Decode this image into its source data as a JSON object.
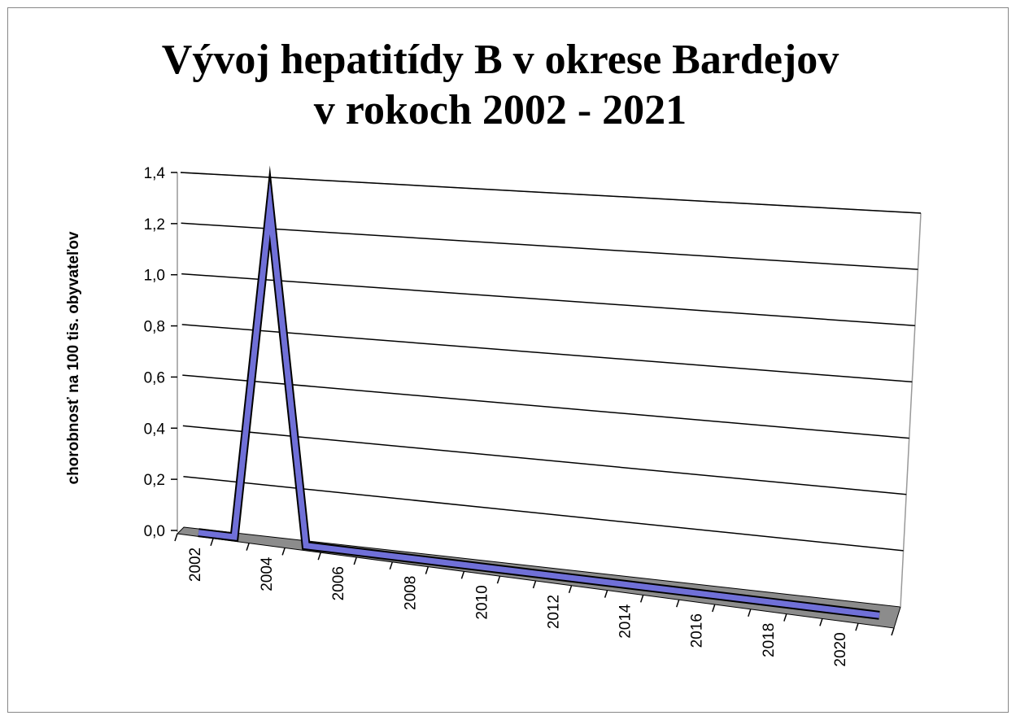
{
  "chart_data": {
    "type": "line",
    "title": [
      "Vývoj hepatitídy B v okrese Bardejov",
      "v rokoch 2002 - 2021"
    ],
    "y_label": "chorobnosť na 100 tis. obyvateľov",
    "categories": [
      "2002",
      null,
      "2004",
      null,
      "2006",
      null,
      "2008",
      null,
      "2010",
      null,
      "2012",
      null,
      "2014",
      null,
      "2016",
      null,
      "2018",
      null,
      "2020",
      null
    ],
    "series": [
      {
        "name": "Bardejov",
        "color": "#7070d8",
        "values": [
          0,
          0,
          1.3,
          0,
          0,
          0,
          0,
          0,
          0,
          0,
          0,
          0,
          0,
          0,
          0,
          0,
          0,
          0,
          0,
          0
        ]
      }
    ],
    "ylim": [
      0,
      1.4
    ],
    "yticks": [
      {
        "value": 0,
        "label": "0,0"
      },
      {
        "value": 0.2,
        "label": "0,2"
      },
      {
        "value": 0.4,
        "label": "0,4"
      },
      {
        "value": 0.6,
        "label": "0,6"
      },
      {
        "value": 0.8,
        "label": "0,8"
      },
      {
        "value": 1.0,
        "label": "1,0"
      },
      {
        "value": 1.2,
        "label": "1,2"
      },
      {
        "value": 1.4,
        "label": "1,4"
      }
    ],
    "grid": true
  }
}
